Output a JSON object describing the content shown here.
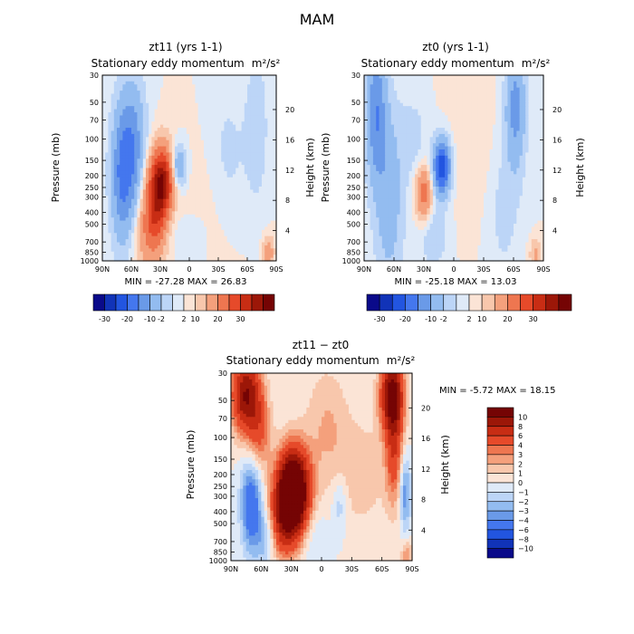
{
  "figure_title": "MAM",
  "chart_data": [
    {
      "type": "heatmap",
      "title": "zt11 (yrs 1-1)",
      "subtitle": "Stationary eddy momentum",
      "units": "m²/s²",
      "xlabel": "",
      "ylabel": "Pressure (mb)",
      "ylabel_right": "Height (km)",
      "x_ticks": [
        "90N",
        "60N",
        "30N",
        "0",
        "30S",
        "60S",
        "90S"
      ],
      "y_ticks": [
        "30",
        "50",
        "70",
        "100",
        "150",
        "200",
        "250",
        "300",
        "400",
        "500",
        "700",
        "850",
        "1000"
      ],
      "y_ticks_right": [
        "4",
        "8",
        "12",
        "16",
        "20"
      ],
      "xlim": [
        90,
        -90
      ],
      "ylim_mb": [
        1000,
        30
      ],
      "stats": "MIN = -27.28   MAX = 26.83",
      "min": -27.28,
      "max": 26.83,
      "colorbar_labels": [
        "-30",
        "-20",
        "-10",
        "-2",
        "2",
        "10",
        "20",
        "30"
      ],
      "features": [
        {
          "lat": 28,
          "p": 220,
          "value": 26.8,
          "sx": 9,
          "sp": 0.45
        },
        {
          "lat": 35,
          "p": 400,
          "value": 14,
          "sx": 10,
          "sp": 0.5
        },
        {
          "lat": 42,
          "p": 650,
          "value": 6,
          "sx": 12,
          "sp": 0.5
        },
        {
          "lat": 12,
          "p": 170,
          "value": -12,
          "sx": 6,
          "sp": 0.3
        },
        {
          "lat": 58,
          "p": 120,
          "value": -12,
          "sx": 9,
          "sp": 0.9
        },
        {
          "lat": 70,
          "p": 200,
          "value": -14,
          "sx": 8,
          "sp": 0.9
        },
        {
          "lat": 20,
          "p": 450,
          "value": -4,
          "sx": 8,
          "sp": 0.5
        },
        {
          "lat": -40,
          "p": 150,
          "value": -3,
          "sx": 15,
          "sp": 1.0
        },
        {
          "lat": -70,
          "p": 80,
          "value": -4,
          "sx": 8,
          "sp": 1.0
        },
        {
          "lat": -20,
          "p": 400,
          "value": 1.5,
          "sx": 25,
          "sp": 1.0
        },
        {
          "lat": -82,
          "p": 850,
          "value": 8,
          "sx": 4,
          "sp": 0.2
        },
        {
          "lat": -5,
          "p": 700,
          "value": -2.5,
          "sx": 10,
          "sp": 0.4
        }
      ]
    },
    {
      "type": "heatmap",
      "title": "zt0 (yrs 1-1)",
      "subtitle": "Stationary eddy momentum",
      "units": "m²/s²",
      "xlabel": "",
      "ylabel": "Pressure (mb)",
      "ylabel_right": "Height (km)",
      "x_ticks": [
        "90N",
        "60N",
        "30N",
        "0",
        "30S",
        "60S",
        "90S"
      ],
      "y_ticks": [
        "30",
        "50",
        "70",
        "100",
        "150",
        "200",
        "250",
        "300",
        "400",
        "500",
        "700",
        "850",
        "1000"
      ],
      "y_ticks_right": [
        "4",
        "8",
        "12",
        "16",
        "20"
      ],
      "xlim": [
        90,
        -90
      ],
      "ylim_mb": [
        1000,
        30
      ],
      "stats": "MIN = -25.18   MAX = 13.03",
      "min": -25.18,
      "max": 13.03,
      "colorbar_labels": [
        "-30",
        "-20",
        "-10",
        "-2",
        "2",
        "10",
        "20",
        "30"
      ],
      "features": [
        {
          "lat": 12,
          "p": 170,
          "value": -25.2,
          "sx": 6,
          "sp": 0.35
        },
        {
          "lat": 78,
          "p": 60,
          "value": -14,
          "sx": 7,
          "sp": 0.9
        },
        {
          "lat": 65,
          "p": 300,
          "value": -8,
          "sx": 10,
          "sp": 1.2
        },
        {
          "lat": -62,
          "p": 55,
          "value": -12,
          "sx": 7,
          "sp": 0.8
        },
        {
          "lat": -50,
          "p": 350,
          "value": -3,
          "sx": 12,
          "sp": 1.0
        },
        {
          "lat": 30,
          "p": 280,
          "value": 13,
          "sx": 6,
          "sp": 0.35
        },
        {
          "lat": 20,
          "p": 600,
          "value": -4,
          "sx": 10,
          "sp": 0.5
        },
        {
          "lat": -20,
          "p": 120,
          "value": 1.5,
          "sx": 20,
          "sp": 1.0
        },
        {
          "lat": 40,
          "p": 100,
          "value": -3,
          "sx": 10,
          "sp": 0.6
        },
        {
          "lat": -82,
          "p": 880,
          "value": 6,
          "sx": 4,
          "sp": 0.2
        }
      ]
    },
    {
      "type": "heatmap",
      "title": "zt11 − zt0",
      "subtitle": "Stationary eddy momentum",
      "units": "m²/s²",
      "xlabel": "",
      "ylabel": "Pressure (mb)",
      "ylabel_right": "Height (km)",
      "x_ticks": [
        "90N",
        "60N",
        "30N",
        "0",
        "30S",
        "60S",
        "90S"
      ],
      "y_ticks": [
        "30",
        "50",
        "70",
        "100",
        "150",
        "200",
        "250",
        "300",
        "400",
        "500",
        "700",
        "850",
        "1000"
      ],
      "y_ticks_right": [
        "4",
        "8",
        "12",
        "16",
        "20"
      ],
      "xlim": [
        90,
        -90
      ],
      "ylim_mb": [
        1000,
        30
      ],
      "stats": "MIN =   -5.72   MAX =   18.15",
      "min": -5.72,
      "max": 18.15,
      "colorbar_labels": [
        "10",
        "8",
        "6",
        "4",
        "3",
        "2",
        "1",
        "0",
        "−1",
        "−2",
        "−3",
        "−4",
        "−6",
        "−8",
        "−10"
      ],
      "features": [
        {
          "lat": 75,
          "p": 45,
          "value": 10,
          "sx": 10,
          "sp": 0.5
        },
        {
          "lat": 62,
          "p": 90,
          "value": 4,
          "sx": 8,
          "sp": 0.5
        },
        {
          "lat": -70,
          "p": 45,
          "value": 11,
          "sx": 8,
          "sp": 0.5
        },
        {
          "lat": -72,
          "p": 130,
          "value": 5,
          "sx": 6,
          "sp": 0.7
        },
        {
          "lat": 28,
          "p": 280,
          "value": 18.15,
          "sx": 11,
          "sp": 0.55
        },
        {
          "lat": 40,
          "p": 500,
          "value": 5,
          "sx": 10,
          "sp": 0.5
        },
        {
          "lat": 70,
          "p": 350,
          "value": -5.7,
          "sx": 7,
          "sp": 0.6
        },
        {
          "lat": 55,
          "p": 650,
          "value": -3,
          "sx": 8,
          "sp": 0.4
        },
        {
          "lat": -83,
          "p": 280,
          "value": -4,
          "sx": 4,
          "sp": 0.5
        },
        {
          "lat": -18,
          "p": 350,
          "value": -2,
          "sx": 5,
          "sp": 0.4
        },
        {
          "lat": -5,
          "p": 80,
          "value": 2,
          "sx": 15,
          "sp": 0.8
        },
        {
          "lat": 10,
          "p": 600,
          "value": -1.5,
          "sx": 10,
          "sp": 0.5
        },
        {
          "lat": -40,
          "p": 200,
          "value": 1.5,
          "sx": 20,
          "sp": 0.8
        },
        {
          "lat": -85,
          "p": 900,
          "value": 3,
          "sx": 4,
          "sp": 0.2
        }
      ]
    }
  ],
  "palettes": {
    "top": [
      "#0a0a8a",
      "#1133b8",
      "#2255e0",
      "#4477ee",
      "#6a9ae8",
      "#93bcf0",
      "#bcd5f7",
      "#dfeaf8",
      "#fbe4d6",
      "#f8c7ac",
      "#f4a07c",
      "#ee7650",
      "#e64a2a",
      "#c82d14",
      "#9c1708",
      "#750404"
    ],
    "diff": [
      "#0a0a8a",
      "#1133b8",
      "#2255e0",
      "#4477ee",
      "#6a9ae8",
      "#93bcf0",
      "#bcd5f7",
      "#dfeaf8",
      "#fbe4d6",
      "#f8c7ac",
      "#f4a07c",
      "#ee7650",
      "#e64a2a",
      "#c82d14",
      "#9c1708",
      "#750404"
    ]
  }
}
